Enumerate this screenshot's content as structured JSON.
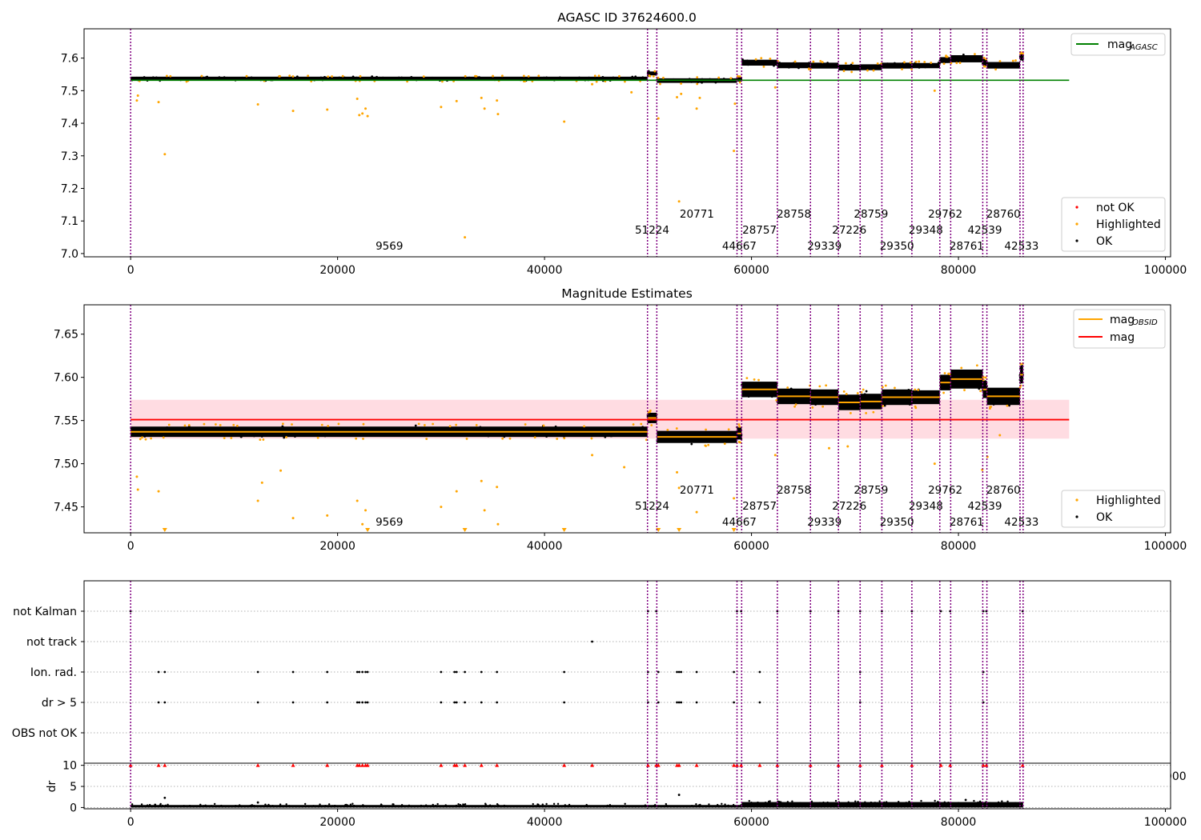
{
  "chart_data": [
    {
      "type": "scatter",
      "title": "AGASC ID 37624600.0",
      "xlim": [
        -4500,
        100500
      ],
      "ylim": [
        6.99,
        7.69
      ],
      "xticks": [
        0,
        20000,
        40000,
        60000,
        80000,
        100000
      ],
      "yticks": [
        7.0,
        7.1,
        7.2,
        7.3,
        7.4,
        7.5,
        7.6
      ],
      "ytick_labels": [
        "7.0",
        "7.1",
        "7.2",
        "7.3",
        "7.4",
        "7.5",
        "7.6"
      ],
      "mag_agasc": 7.532,
      "mag_agasc_color": "#008000",
      "legend_lines": [
        {
          "name": "mag",
          "sub": "AGASC",
          "color": "#008000"
        }
      ],
      "legend_points": [
        {
          "name": "not OK",
          "color": "#ff0000"
        },
        {
          "name": "Highlighted",
          "color": "#ffa500"
        },
        {
          "name": "OK",
          "color": "#000000"
        }
      ],
      "outliers": [
        [
          600,
          7.47
        ],
        [
          700,
          7.485
        ],
        [
          2700,
          7.465
        ],
        [
          3300,
          7.305
        ],
        [
          12300,
          7.458
        ],
        [
          15700,
          7.438
        ],
        [
          19000,
          7.442
        ],
        [
          21900,
          7.475
        ],
        [
          22100,
          7.425
        ],
        [
          22400,
          7.43
        ],
        [
          22700,
          7.445
        ],
        [
          22900,
          7.422
        ],
        [
          30000,
          7.45
        ],
        [
          31500,
          7.468
        ],
        [
          33900,
          7.478
        ],
        [
          34200,
          7.445
        ],
        [
          35400,
          7.47
        ],
        [
          35500,
          7.428
        ],
        [
          41900,
          7.405
        ],
        [
          44600,
          7.52
        ],
        [
          48400,
          7.495
        ],
        [
          51000,
          7.415
        ],
        [
          52800,
          7.48
        ],
        [
          53000,
          7.16
        ],
        [
          53200,
          7.49
        ],
        [
          54700,
          7.445
        ],
        [
          55000,
          7.478
        ],
        [
          58300,
          7.315
        ],
        [
          58400,
          7.46
        ],
        [
          32300,
          7.05
        ],
        [
          62300,
          7.51
        ],
        [
          77700,
          7.5
        ]
      ]
    },
    {
      "type": "scatter",
      "title": "Magnitude Estimates",
      "xlim": [
        -4500,
        100500
      ],
      "ylim": [
        7.42,
        7.684
      ],
      "xticks": [
        0,
        20000,
        40000,
        60000,
        80000,
        100000
      ],
      "yticks": [
        7.45,
        7.5,
        7.55,
        7.6,
        7.65
      ],
      "ytick_labels": [
        "7.45",
        "7.50",
        "7.55",
        "7.60",
        "7.65"
      ],
      "mag": 7.551,
      "mag_band": [
        7.529,
        7.574
      ],
      "legend_lines": [
        {
          "name": "mag",
          "sub": "OBSID",
          "color": "#ffa500"
        },
        {
          "name": "mag",
          "sub": "",
          "color": "#ff0000"
        }
      ],
      "legend_points": [
        {
          "name": "Highlighted",
          "color": "#ffa500"
        },
        {
          "name": "OK",
          "color": "#000000"
        }
      ],
      "outliers": [
        [
          600,
          7.485
        ],
        [
          700,
          7.47
        ],
        [
          2700,
          7.468
        ],
        [
          12300,
          7.457
        ],
        [
          12700,
          7.478
        ],
        [
          14500,
          7.492
        ],
        [
          15700,
          7.437
        ],
        [
          19000,
          7.44
        ],
        [
          21900,
          7.457
        ],
        [
          22400,
          7.43
        ],
        [
          22700,
          7.446
        ],
        [
          30000,
          7.45
        ],
        [
          31500,
          7.468
        ],
        [
          33900,
          7.48
        ],
        [
          34200,
          7.446
        ],
        [
          35400,
          7.473
        ],
        [
          35500,
          7.43
        ],
        [
          44600,
          7.51
        ],
        [
          47700,
          7.496
        ],
        [
          52800,
          7.49
        ],
        [
          53000,
          7.472
        ],
        [
          54700,
          7.444
        ],
        [
          58300,
          7.46
        ],
        [
          62300,
          7.51
        ],
        [
          67500,
          7.518
        ],
        [
          69300,
          7.52
        ],
        [
          77700,
          7.5
        ],
        [
          82300,
          7.493
        ],
        [
          82800,
          7.508
        ],
        [
          84000,
          7.533
        ]
      ],
      "offscale_markers": [
        3300,
        22900,
        32300,
        41900,
        51000,
        53000,
        58300
      ]
    },
    {
      "type": "scatter",
      "ylabel_bottom": "dr",
      "xlim": [
        -4500,
        100500
      ],
      "xticks": [
        0,
        20000,
        40000,
        60000,
        80000,
        100000
      ],
      "flag_labels": [
        "not Kalman",
        "not track",
        "Ion. rad.",
        "dr > 5",
        "OBS not OK"
      ],
      "dr_yticks": [
        0,
        5,
        10
      ],
      "dr_ylim": [
        -0.3,
        10.5
      ],
      "not_kalman_x": [
        0,
        50000,
        50800,
        58600,
        59000,
        62500,
        65700,
        68400,
        70500,
        72600,
        75500,
        78300,
        79200,
        82400,
        82700,
        86200
      ],
      "not_track_x": [
        44600
      ],
      "ion_rad_x": [
        2700,
        3300,
        12300,
        15700,
        19000,
        21900,
        22100,
        22400,
        22700,
        22900,
        30000,
        31300,
        31500,
        32300,
        33900,
        35400,
        41900,
        50000,
        51000,
        52800,
        53000,
        53200,
        54700,
        58300,
        60800,
        70500,
        82400
      ],
      "dr5_x": [
        2700,
        3300,
        12300,
        15700,
        19000,
        21900,
        22100,
        22400,
        22700,
        22900,
        30000,
        31300,
        31500,
        32300,
        33900,
        35400,
        41900,
        50000,
        51000,
        52800,
        53000,
        53200,
        54700,
        58300,
        60800,
        70500,
        82400
      ],
      "dr_clip_x": [
        0,
        2700,
        3300,
        12300,
        15700,
        19000,
        21900,
        22100,
        22400,
        22700,
        22900,
        30000,
        31300,
        31500,
        32300,
        33900,
        35400,
        41900,
        44600,
        50000,
        50800,
        51000,
        52800,
        53000,
        54700,
        58300,
        58600,
        59000,
        60800,
        62500,
        65700,
        68400,
        70500,
        72600,
        75500,
        78300,
        79200,
        82400,
        82700,
        86200
      ],
      "dr_points": [
        [
          3300,
          2.3
        ],
        [
          53000,
          3.0
        ],
        [
          12300,
          1.2
        ],
        [
          80700,
          1.8
        ]
      ],
      "stray_tick_label": "100000"
    }
  ],
  "obsids": [
    {
      "label": "9569",
      "start": 0,
      "end": 49950,
      "row": 0
    },
    {
      "label": "51224",
      "start": 49950,
      "end": 50850,
      "row": 1
    },
    {
      "label": "20771",
      "start": 50850,
      "end": 58600,
      "row": 2
    },
    {
      "label": "44667",
      "start": 58600,
      "end": 59050,
      "row": 0
    },
    {
      "label": "28757",
      "start": 59050,
      "end": 62500,
      "row": 1
    },
    {
      "label": "28758",
      "start": 62500,
      "end": 65700,
      "row": 2
    },
    {
      "label": "29339",
      "start": 65700,
      "end": 68400,
      "row": 0
    },
    {
      "label": "27226",
      "start": 68400,
      "end": 70500,
      "row": 1
    },
    {
      "label": "28759",
      "start": 70500,
      "end": 72600,
      "row": 2
    },
    {
      "label": "29350",
      "start": 72600,
      "end": 75500,
      "row": 0
    },
    {
      "label": "29348",
      "start": 75500,
      "end": 78200,
      "row": 1
    },
    {
      "label": "29762",
      "start": 78200,
      "end": 79250,
      "row": 2
    },
    {
      "label": "28761",
      "start": 79250,
      "end": 82350,
      "row": 0
    },
    {
      "label": "42539",
      "start": 82350,
      "end": 82750,
      "row": 1
    },
    {
      "label": "28760",
      "start": 82750,
      "end": 85950,
      "row": 2
    },
    {
      "label": "42533",
      "start": 85950,
      "end": 86250,
      "row": 0
    }
  ],
  "segments": [
    {
      "start": 0,
      "end": 49950,
      "mean": 7.537,
      "spread": 0.006
    },
    {
      "start": 49950,
      "end": 50850,
      "mean": 7.553,
      "spread": 0.006
    },
    {
      "start": 50850,
      "end": 58600,
      "mean": 7.531,
      "spread": 0.007
    },
    {
      "start": 58600,
      "end": 59050,
      "mean": 7.535,
      "spread": 0.007
    },
    {
      "start": 59050,
      "end": 62500,
      "mean": 7.586,
      "spread": 0.009
    },
    {
      "start": 62500,
      "end": 65700,
      "mean": 7.578,
      "spread": 0.009
    },
    {
      "start": 65700,
      "end": 68400,
      "mean": 7.577,
      "spread": 0.009
    },
    {
      "start": 68400,
      "end": 70500,
      "mean": 7.571,
      "spread": 0.009
    },
    {
      "start": 70500,
      "end": 72600,
      "mean": 7.572,
      "spread": 0.009
    },
    {
      "start": 72600,
      "end": 75500,
      "mean": 7.577,
      "spread": 0.009
    },
    {
      "start": 75500,
      "end": 78200,
      "mean": 7.577,
      "spread": 0.008
    },
    {
      "start": 78200,
      "end": 79250,
      "mean": 7.594,
      "spread": 0.009
    },
    {
      "start": 79250,
      "end": 82350,
      "mean": 7.598,
      "spread": 0.011
    },
    {
      "start": 82350,
      "end": 82750,
      "mean": 7.586,
      "spread": 0.01
    },
    {
      "start": 82750,
      "end": 85950,
      "mean": 7.578,
      "spread": 0.01
    },
    {
      "start": 85950,
      "end": 86250,
      "mean": 7.603,
      "spread": 0.01
    }
  ]
}
